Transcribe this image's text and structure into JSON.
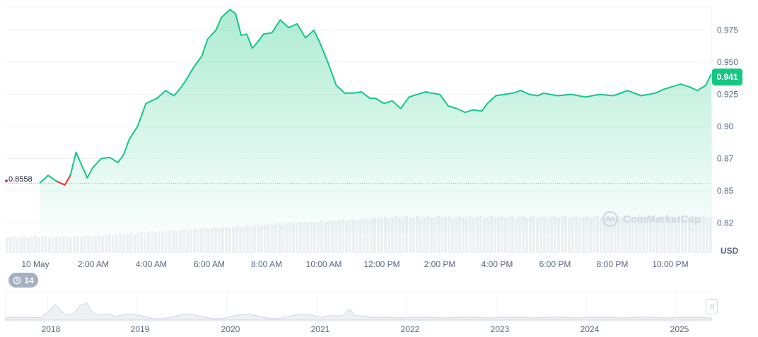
{
  "chart_data": {
    "type": "area",
    "currency_label": "USD",
    "open_price_label": "0.8558",
    "current_price_label": "0.941",
    "x_ticks": [
      "10 May",
      "2:00 AM",
      "4:00 AM",
      "6:00 AM",
      "8:00 AM",
      "10:00 AM",
      "12:00 PM",
      "2:00 PM",
      "4:00 PM",
      "6:00 PM",
      "8:00 PM",
      "10:00 PM"
    ],
    "y_ticks": [
      {
        "label": "0.975",
        "value": 0.975
      },
      {
        "label": "0.950",
        "value": 0.95
      },
      {
        "label": "0.925",
        "value": 0.925
      },
      {
        "label": "0.90",
        "value": 0.9
      },
      {
        "label": "0.87",
        "value": 0.875
      },
      {
        "label": "0.85",
        "value": 0.85
      },
      {
        "label": "0.82",
        "value": 0.825
      }
    ],
    "y_range": [
      0.817,
      0.993
    ],
    "x_range": [
      0,
      24
    ],
    "series": [
      {
        "x": [
          0,
          0.3,
          0.6,
          0.9,
          1.1,
          1.3,
          1.5,
          1.7,
          1.9,
          2.2,
          2.5,
          2.8,
          3.0,
          3.2,
          3.5,
          3.8,
          4.0,
          4.2,
          4.5,
          4.8,
          5.0,
          5.2,
          5.5,
          5.8,
          6.0,
          6.3,
          6.5,
          6.8,
          7.0,
          7.2,
          7.4,
          7.6,
          7.8,
          8.0,
          8.3,
          8.6,
          8.9,
          9.2,
          9.5,
          9.8,
          10.0,
          10.3,
          10.6,
          10.9,
          11.2,
          11.5,
          11.8,
          12.0,
          12.3,
          12.6,
          12.9,
          13.2,
          13.5,
          13.8,
          14.0,
          14.3,
          14.6,
          14.9,
          15.2,
          15.5,
          15.8,
          16.0,
          16.3,
          16.6,
          16.9,
          17.2,
          17.5,
          17.8,
          18.0,
          18.5,
          19.0,
          19.5,
          20.0,
          20.5,
          21.0,
          21.5,
          22.0,
          22.3,
          22.6,
          22.9,
          23.2,
          23.5,
          23.8,
          24.0
        ],
        "y": [
          0.8558,
          0.862,
          0.8575,
          0.8545,
          0.862,
          0.88,
          0.87,
          0.86,
          0.868,
          0.875,
          0.876,
          0.872,
          0.878,
          0.89,
          0.9,
          0.918,
          0.92,
          0.922,
          0.928,
          0.924,
          0.929,
          0.935,
          0.946,
          0.955,
          0.968,
          0.975,
          0.985,
          0.991,
          0.988,
          0.971,
          0.972,
          0.961,
          0.966,
          0.972,
          0.973,
          0.983,
          0.977,
          0.98,
          0.969,
          0.975,
          0.966,
          0.95,
          0.932,
          0.926,
          0.926,
          0.927,
          0.922,
          0.922,
          0.918,
          0.92,
          0.914,
          0.923,
          0.925,
          0.927,
          0.926,
          0.925,
          0.916,
          0.914,
          0.911,
          0.913,
          0.912,
          0.918,
          0.924,
          0.925,
          0.926,
          0.928,
          0.925,
          0.924,
          0.926,
          0.924,
          0.925,
          0.923,
          0.925,
          0.924,
          0.928,
          0.924,
          0.926,
          0.929,
          0.931,
          0.933,
          0.931,
          0.928,
          0.932,
          0.941
        ]
      }
    ],
    "history": {
      "badge": "14",
      "years": [
        "2018",
        "2019",
        "2020",
        "2021",
        "2022",
        "2023",
        "2024",
        "2025"
      ]
    },
    "watermark": "CoinMarketCap",
    "colors": {
      "line": "#16c784",
      "down": "#ea3943",
      "volume": "#eef0f4",
      "grid": "#eff2f5"
    }
  }
}
